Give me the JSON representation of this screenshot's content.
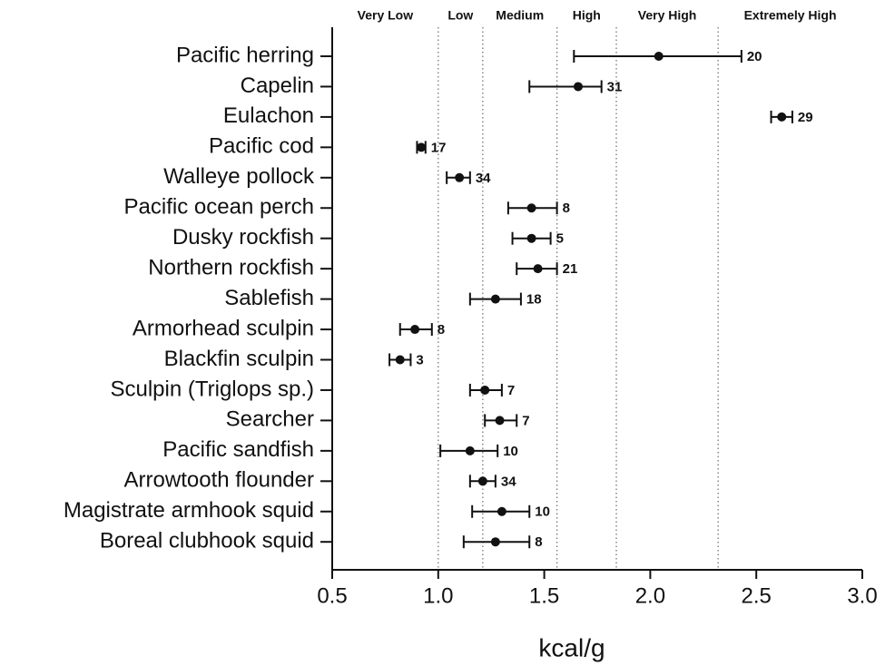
{
  "chart_data": {
    "type": "errorbar-dot",
    "x_label": "kcal/g",
    "categories": [
      "Pacific herring",
      "Capelin",
      "Eulachon",
      "Pacific cod",
      "Walleye pollock",
      "Pacific ocean perch",
      "Dusky rockfish",
      "Northern rockfish",
      "Sablefish",
      "Armorhead sculpin",
      "Blackfin sculpin",
      "Sculpin (Triglops sp.)",
      "Searcher",
      "Pacific sandfish",
      "Arrowtooth flounder",
      "Magistrate armhook squid",
      "Boreal clubhook squid"
    ],
    "values": [
      2.04,
      1.66,
      2.62,
      0.92,
      1.1,
      1.44,
      1.44,
      1.47,
      1.27,
      0.89,
      0.82,
      1.22,
      1.29,
      1.15,
      1.21,
      1.3,
      1.27
    ],
    "lower": [
      1.64,
      1.43,
      2.57,
      0.9,
      1.04,
      1.33,
      1.35,
      1.37,
      1.15,
      0.82,
      0.77,
      1.15,
      1.22,
      1.01,
      1.15,
      1.16,
      1.12
    ],
    "upper": [
      2.43,
      1.77,
      2.67,
      0.94,
      1.15,
      1.56,
      1.53,
      1.56,
      1.39,
      0.97,
      0.87,
      1.3,
      1.37,
      1.28,
      1.27,
      1.43,
      1.43
    ],
    "n": [
      20,
      31,
      29,
      17,
      34,
      8,
      5,
      21,
      18,
      8,
      3,
      7,
      7,
      10,
      34,
      10,
      8
    ],
    "bands": [
      "Very Low",
      "Low",
      "Medium",
      "High",
      "Very High",
      "Extremely High"
    ],
    "thresholds": [
      1.0,
      1.21,
      1.56,
      1.84,
      2.32
    ],
    "color": "#111111",
    "xlim": [
      0.5,
      3.0
    ],
    "xticks": [
      {
        "value": 0.5,
        "label": "0.5"
      },
      {
        "value": 1.0,
        "label": "1.0"
      },
      {
        "value": 1.5,
        "label": "1.5"
      },
      {
        "value": 2.0,
        "label": "2.0"
      },
      {
        "value": 2.5,
        "label": "2.5"
      },
      {
        "value": 3.0,
        "label": "3.0"
      }
    ]
  }
}
